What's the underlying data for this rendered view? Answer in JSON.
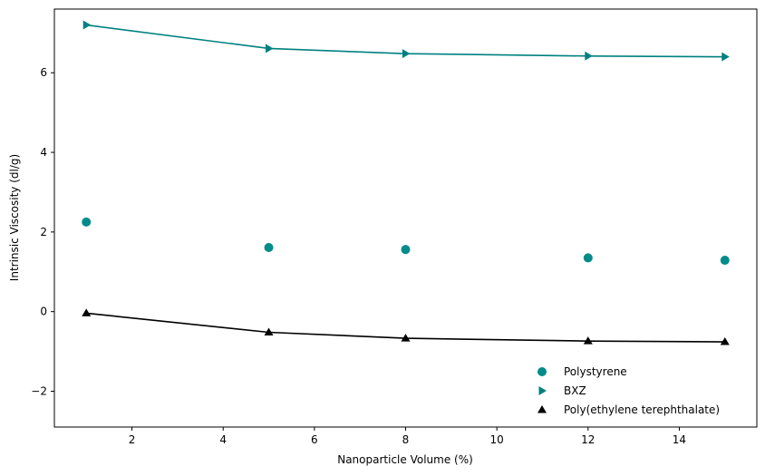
{
  "chart_data": {
    "type": "line",
    "title": "",
    "xlabel": "Nanoparticle Volume (%)",
    "ylabel": "Intrinsic Viscosity (dl/g)",
    "xlim": [
      0.3,
      15.7
    ],
    "ylim": [
      -2.9,
      7.6
    ],
    "x_ticks": [
      2,
      4,
      6,
      8,
      10,
      12,
      14
    ],
    "y_ticks": [
      -2,
      0,
      2,
      4,
      6
    ],
    "grid": false,
    "legend_position": "lower right",
    "x": [
      1,
      5,
      8,
      12,
      15
    ],
    "series": [
      {
        "name": "Polystyrene",
        "values": [
          2.25,
          1.61,
          1.56,
          1.35,
          1.29
        ],
        "marker": "circle",
        "line": false,
        "color": "#008b8b"
      },
      {
        "name": "BXZ",
        "values": [
          7.2,
          6.61,
          6.48,
          6.42,
          6.4
        ],
        "marker": "triangle-right",
        "line": true,
        "color": "#008080"
      },
      {
        "name": "Poly(ethylene terephthalate)",
        "values": [
          -0.04,
          -0.52,
          -0.67,
          -0.74,
          -0.76
        ],
        "marker": "triangle-up",
        "line": true,
        "color": "#000000"
      }
    ]
  }
}
